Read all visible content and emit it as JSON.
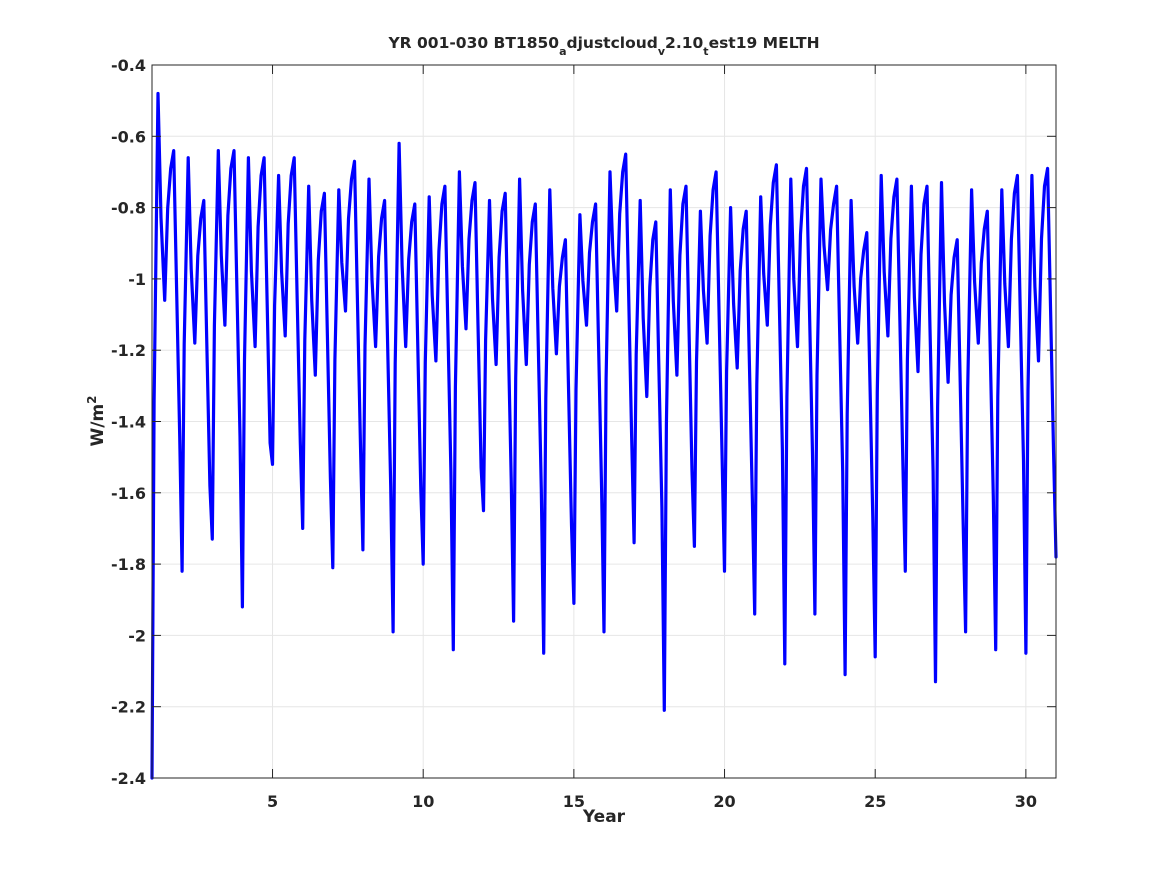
{
  "chart_data": {
    "type": "line",
    "title_parts": [
      "YR 001-030 BT1850",
      "a",
      "djustcloud",
      "v",
      "2.10",
      "t",
      "est19 MELTH"
    ],
    "xlabel": "Year",
    "ylabel_parts": [
      "W/m",
      "2"
    ],
    "xlim": [
      1,
      31
    ],
    "ylim": [
      -2.4,
      -0.4
    ],
    "xticks": [
      5,
      10,
      15,
      20,
      25,
      30
    ],
    "yticks": [
      -2.4,
      -2.2,
      -2,
      -1.8,
      -1.6,
      -1.4,
      -1.2,
      -1,
      -0.8,
      -0.6,
      -0.4
    ],
    "xtick_labels": [
      "5",
      "10",
      "15",
      "20",
      "25",
      "30"
    ],
    "ytick_labels": [
      "-2.4",
      "-2.2",
      "-2",
      "-1.8",
      "-1.6",
      "-1.4",
      "-1.2",
      "-1",
      "-0.8",
      "-0.6",
      "-0.4"
    ],
    "grid": true,
    "line_color": "#0000ff",
    "annual_cycles": [
      {
        "year": 1,
        "min": -2.4,
        "peak1": -0.48,
        "mid": -1.06,
        "peak2": -0.69
      },
      {
        "year": 2,
        "min": -1.82,
        "peak1": -0.66,
        "mid": -1.18,
        "peak2": -0.83
      },
      {
        "year": 3,
        "min": -1.73,
        "peak1": -0.64,
        "mid": -1.13,
        "peak2": -0.69
      },
      {
        "year": 4,
        "min": -1.92,
        "peak1": -0.66,
        "mid": -1.19,
        "peak2": -0.71
      },
      {
        "year": 5,
        "min": -1.52,
        "peak1": -0.71,
        "mid": -1.16,
        "peak2": -0.71
      },
      {
        "year": 6,
        "min": -1.7,
        "peak1": -0.74,
        "mid": -1.27,
        "peak2": -0.81
      },
      {
        "year": 7,
        "min": -1.81,
        "peak1": -0.75,
        "mid": -1.09,
        "peak2": -0.72
      },
      {
        "year": 8,
        "min": -1.76,
        "peak1": -0.72,
        "mid": -1.19,
        "peak2": -0.83
      },
      {
        "year": 9,
        "min": -1.99,
        "peak1": -0.62,
        "mid": -1.19,
        "peak2": -0.84
      },
      {
        "year": 10,
        "min": -1.8,
        "peak1": -0.77,
        "mid": -1.23,
        "peak2": -0.79
      },
      {
        "year": 11,
        "min": -2.04,
        "peak1": -0.7,
        "mid": -1.14,
        "peak2": -0.78
      },
      {
        "year": 12,
        "min": -1.65,
        "peak1": -0.78,
        "mid": -1.24,
        "peak2": -0.81
      },
      {
        "year": 13,
        "min": -1.96,
        "peak1": -0.72,
        "mid": -1.24,
        "peak2": -0.84
      },
      {
        "year": 14,
        "min": -2.05,
        "peak1": -0.75,
        "mid": -1.21,
        "peak2": -0.94
      },
      {
        "year": 15,
        "min": -1.91,
        "peak1": -0.82,
        "mid": -1.13,
        "peak2": -0.84
      },
      {
        "year": 16,
        "min": -1.99,
        "peak1": -0.7,
        "mid": -1.09,
        "peak2": -0.7
      },
      {
        "year": 17,
        "min": -1.74,
        "peak1": -0.78,
        "mid": -1.33,
        "peak2": -0.89
      },
      {
        "year": 18,
        "min": -2.21,
        "peak1": -0.75,
        "mid": -1.27,
        "peak2": -0.79
      },
      {
        "year": 19,
        "min": -1.75,
        "peak1": -0.81,
        "mid": -1.18,
        "peak2": -0.75
      },
      {
        "year": 20,
        "min": -1.82,
        "peak1": -0.8,
        "mid": -1.25,
        "peak2": -0.86
      },
      {
        "year": 21,
        "min": -1.94,
        "peak1": -0.77,
        "mid": -1.13,
        "peak2": -0.73
      },
      {
        "year": 22,
        "min": -2.08,
        "peak1": -0.72,
        "mid": -1.19,
        "peak2": -0.74
      },
      {
        "year": 23,
        "min": -1.94,
        "peak1": -0.72,
        "mid": -1.03,
        "peak2": -0.79
      },
      {
        "year": 24,
        "min": -2.11,
        "peak1": -0.78,
        "mid": -1.18,
        "peak2": -0.92
      },
      {
        "year": 25,
        "min": -2.06,
        "peak1": -0.71,
        "mid": -1.16,
        "peak2": -0.77
      },
      {
        "year": 26,
        "min": -1.82,
        "peak1": -0.74,
        "mid": -1.26,
        "peak2": -0.79
      },
      {
        "year": 27,
        "min": -2.13,
        "peak1": -0.73,
        "mid": -1.29,
        "peak2": -0.94
      },
      {
        "year": 28,
        "min": -1.99,
        "peak1": -0.75,
        "mid": -1.18,
        "peak2": -0.86
      },
      {
        "year": 29,
        "min": -2.04,
        "peak1": -0.75,
        "mid": -1.19,
        "peak2": -0.76
      },
      {
        "year": 30,
        "min": -2.05,
        "peak1": -0.71,
        "mid": -1.23,
        "peak2": -0.74
      }
    ],
    "series_end": {
      "x": 31,
      "y": -1.78
    }
  }
}
